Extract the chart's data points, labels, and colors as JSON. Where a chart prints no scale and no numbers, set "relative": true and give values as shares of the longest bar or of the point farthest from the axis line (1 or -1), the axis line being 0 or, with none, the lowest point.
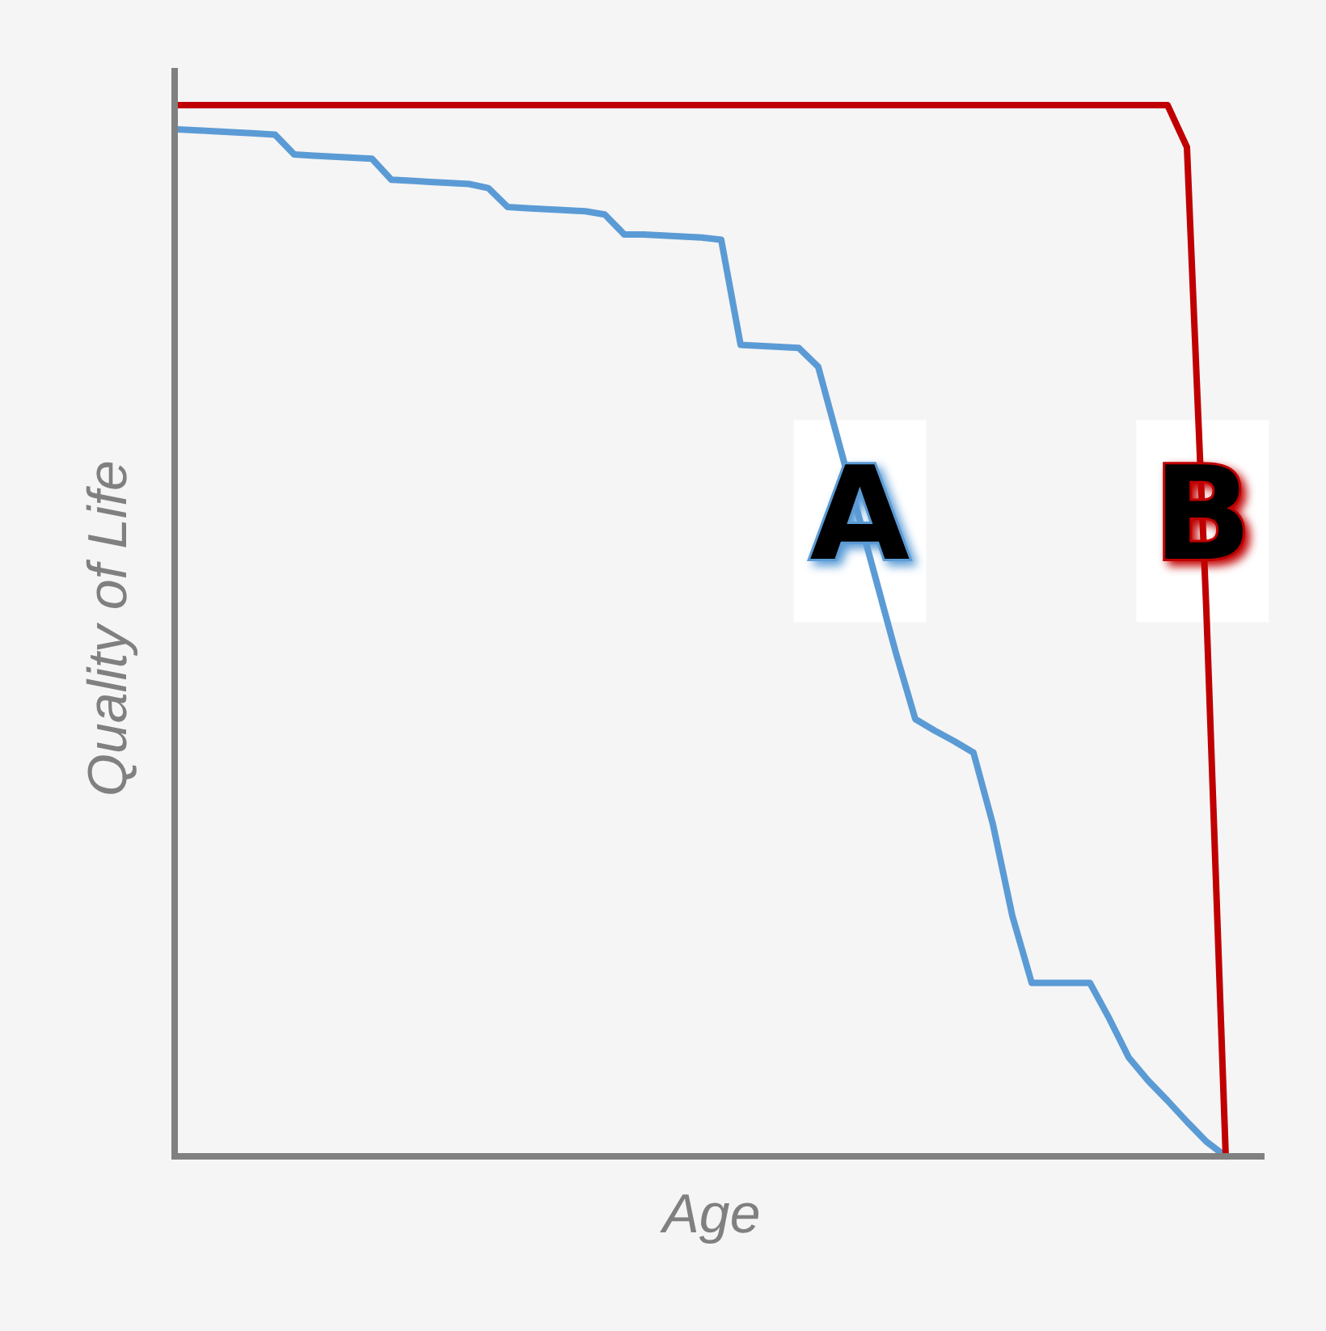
{
  "chart_data": {
    "type": "line",
    "xlabel": "Age",
    "ylabel": "Quality of Life",
    "relative": true,
    "categories": [
      null,
      null,
      null,
      null,
      null,
      null,
      null,
      null,
      null,
      null,
      null,
      null,
      null,
      null,
      null,
      null,
      null,
      null,
      null,
      null,
      null,
      null,
      null,
      null,
      null,
      null,
      null,
      null,
      null,
      null,
      null,
      null,
      null,
      null,
      null,
      null,
      null,
      null,
      null,
      null,
      null,
      null,
      null,
      null,
      null,
      null,
      null,
      null,
      null,
      null,
      null,
      null,
      null,
      null,
      null
    ],
    "series": [
      {
        "name": "A",
        "color": "#5b9bd5",
        "values": [
          0.977,
          0.976,
          0.975,
          0.974,
          0.973,
          0.972,
          0.953,
          0.952,
          0.951,
          0.95,
          0.949,
          0.929,
          0.928,
          0.927,
          0.926,
          0.925,
          0.921,
          0.903,
          0.902,
          0.901,
          0.9,
          0.899,
          0.896,
          0.877,
          0.877,
          0.876,
          0.875,
          0.874,
          0.872,
          0.772,
          0.771,
          0.77,
          0.769,
          0.751,
          0.683,
          0.615,
          0.547,
          0.479,
          0.416,
          0.405,
          0.395,
          0.384,
          0.316,
          0.229,
          0.165,
          0.165,
          0.165,
          0.165,
          0.131,
          0.094,
          0.072,
          0.053,
          0.033,
          0.014,
          0
        ]
      },
      {
        "name": "B",
        "color": "#c00000",
        "values": [
          1,
          1,
          1,
          1,
          1,
          1,
          1,
          1,
          1,
          1,
          1,
          1,
          1,
          1,
          1,
          1,
          1,
          1,
          1,
          1,
          1,
          1,
          1,
          1,
          1,
          1,
          1,
          1,
          1,
          1,
          1,
          1,
          1,
          1,
          1,
          1,
          1,
          1,
          1,
          1,
          1,
          1,
          1,
          1,
          1,
          1,
          1,
          1,
          1,
          1,
          1,
          1,
          0.96,
          0.52,
          0
        ]
      }
    ]
  }
}
